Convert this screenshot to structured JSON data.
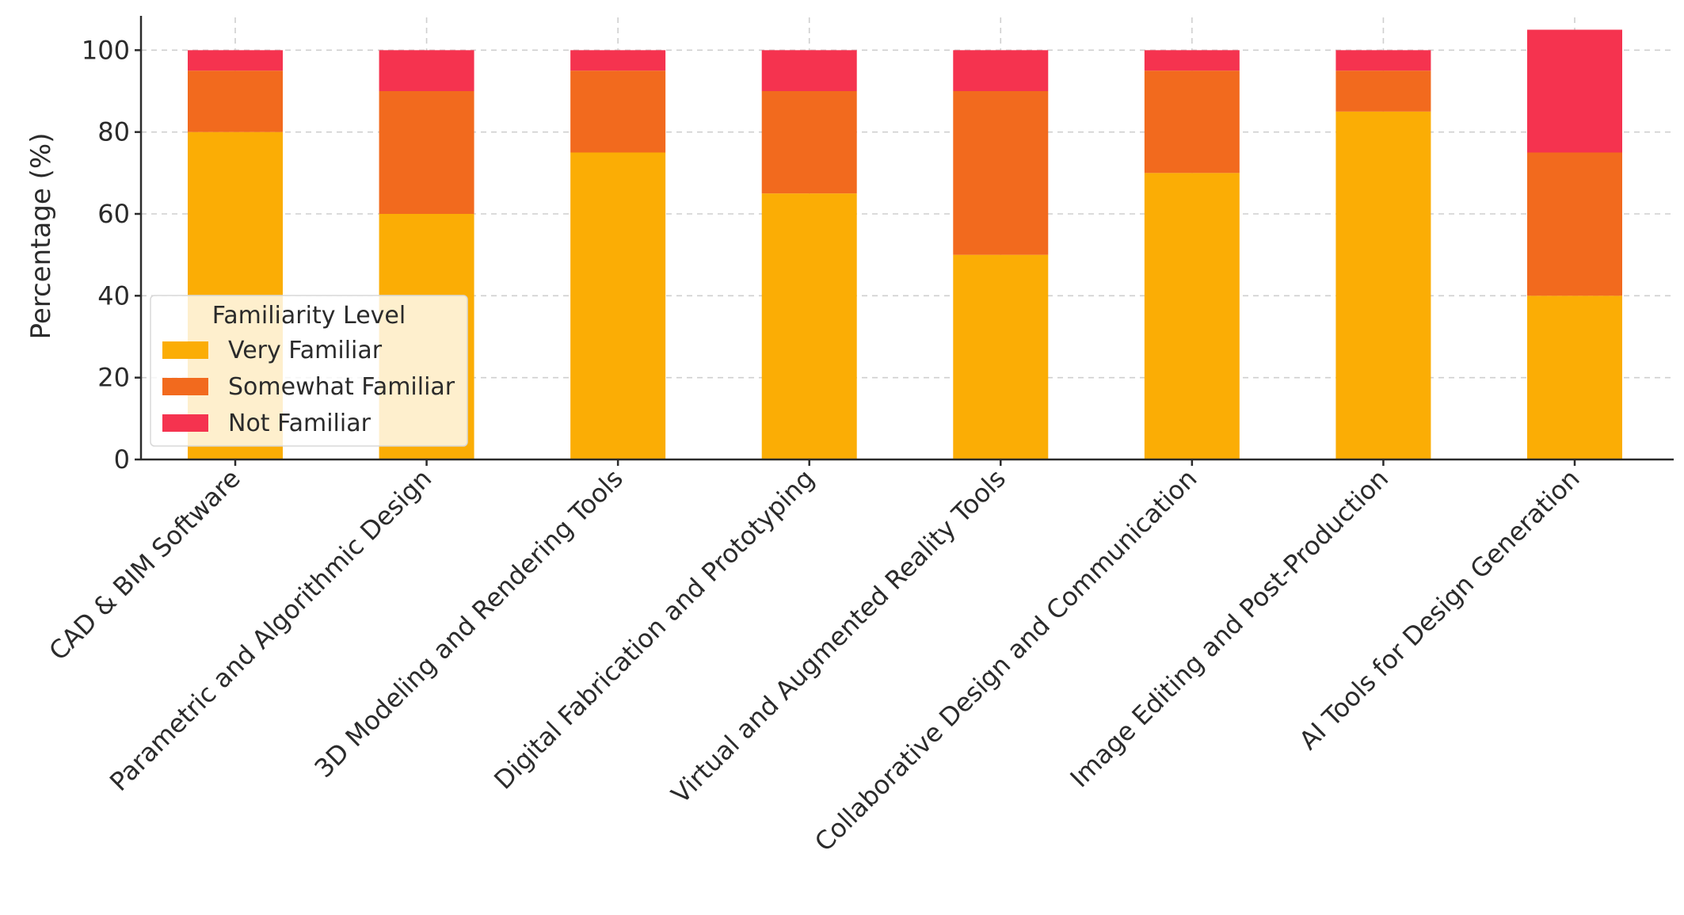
{
  "chart_data": {
    "type": "bar",
    "stacked": true,
    "title": "",
    "xlabel": "",
    "ylabel": "Percentage (%)",
    "ylim": [
      0,
      108
    ],
    "yticks": [
      0,
      20,
      40,
      60,
      80,
      100
    ],
    "grid": true,
    "legend": {
      "title": "Familiarity Level",
      "location": "center-left"
    },
    "categories": [
      "CAD & BIM Software",
      "Parametric and Algorithmic Design",
      "3D Modeling and Rendering Tools",
      "Digital Fabrication and Prototyping",
      "Virtual and Augmented Reality Tools",
      "Collaborative Design and Communication",
      "Image Editing and Post-Production",
      "AI Tools for Design Generation"
    ],
    "series": [
      {
        "name": "Very Familiar",
        "color": "#FBAD05",
        "values": [
          80,
          60,
          75,
          65,
          50,
          70,
          85,
          40
        ]
      },
      {
        "name": "Somewhat Familiar",
        "color": "#F26A1E",
        "values": [
          15,
          30,
          20,
          25,
          40,
          25,
          10,
          35
        ]
      },
      {
        "name": "Not Familiar",
        "color": "#F5334F",
        "values": [
          5,
          10,
          5,
          10,
          10,
          5,
          5,
          30
        ]
      }
    ]
  }
}
